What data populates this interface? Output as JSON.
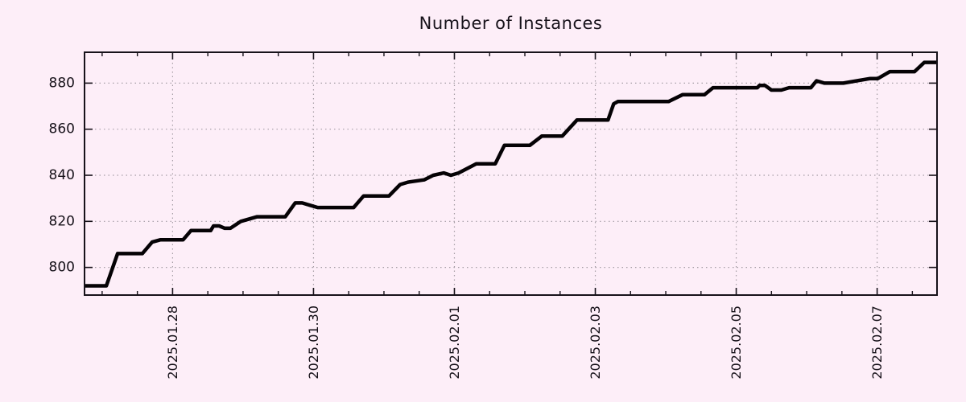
{
  "title": "Number of Instances",
  "colors": {
    "background": "#fdeef8",
    "line": "#050205",
    "grid": "#a59da5",
    "border": "#17121a",
    "text": "#17121a"
  },
  "chart_data": {
    "type": "line",
    "title": "Number of Instances",
    "xlabel": "",
    "ylabel": "",
    "legend": "none",
    "grid": true,
    "line_style": "thick black step-like staircase",
    "x_unit": "days since 2025-01-28 00:00 (date axis)",
    "xlim": [
      -1.25,
      10.85
    ],
    "ylim": [
      788,
      893.4
    ],
    "y_ticks": [
      800,
      820,
      840,
      860,
      880
    ],
    "x_ticks": [
      {
        "t": 0,
        "label": "2025.01.28"
      },
      {
        "t": 2,
        "label": "2025.01.30"
      },
      {
        "t": 4,
        "label": "2025.02.01"
      },
      {
        "t": 6,
        "label": "2025.02.03"
      },
      {
        "t": 8,
        "label": "2025.02.05"
      },
      {
        "t": 10,
        "label": "2025.02.07"
      }
    ],
    "x_minor_tick_interval": 0.5,
    "series": [
      {
        "name": "instances",
        "points": [
          [
            -1.25,
            792
          ],
          [
            -0.94,
            792
          ],
          [
            -0.78,
            806
          ],
          [
            -0.43,
            806
          ],
          [
            -0.29,
            811
          ],
          [
            -0.17,
            812
          ],
          [
            0.15,
            812
          ],
          [
            0.26,
            816
          ],
          [
            0.54,
            816
          ],
          [
            0.58,
            818
          ],
          [
            0.66,
            818
          ],
          [
            0.74,
            817
          ],
          [
            0.82,
            817
          ],
          [
            0.97,
            820
          ],
          [
            1.2,
            822
          ],
          [
            1.6,
            822
          ],
          [
            1.74,
            828
          ],
          [
            1.84,
            828
          ],
          [
            1.95,
            827
          ],
          [
            2.06,
            826
          ],
          [
            2.57,
            826
          ],
          [
            2.71,
            831
          ],
          [
            3.07,
            831
          ],
          [
            3.23,
            836
          ],
          [
            3.34,
            837
          ],
          [
            3.57,
            838
          ],
          [
            3.7,
            840
          ],
          [
            3.85,
            841
          ],
          [
            3.95,
            840
          ],
          [
            4.06,
            841
          ],
          [
            4.31,
            845
          ],
          [
            4.58,
            845
          ],
          [
            4.71,
            853
          ],
          [
            5.07,
            853
          ],
          [
            5.24,
            857
          ],
          [
            5.53,
            857
          ],
          [
            5.74,
            864
          ],
          [
            6.18,
            864
          ],
          [
            6.26,
            871
          ],
          [
            6.32,
            872
          ],
          [
            7.04,
            872
          ],
          [
            7.24,
            875
          ],
          [
            7.55,
            875
          ],
          [
            7.67,
            878
          ],
          [
            8.3,
            878
          ],
          [
            8.33,
            879
          ],
          [
            8.41,
            879
          ],
          [
            8.5,
            877
          ],
          [
            8.64,
            877
          ],
          [
            8.75,
            878
          ],
          [
            9.06,
            878
          ],
          [
            9.14,
            881
          ],
          [
            9.25,
            880
          ],
          [
            9.52,
            880
          ],
          [
            9.9,
            882
          ],
          [
            10.01,
            882
          ],
          [
            10.18,
            885
          ],
          [
            10.53,
            885
          ],
          [
            10.67,
            889
          ],
          [
            10.85,
            889
          ]
        ]
      }
    ]
  }
}
